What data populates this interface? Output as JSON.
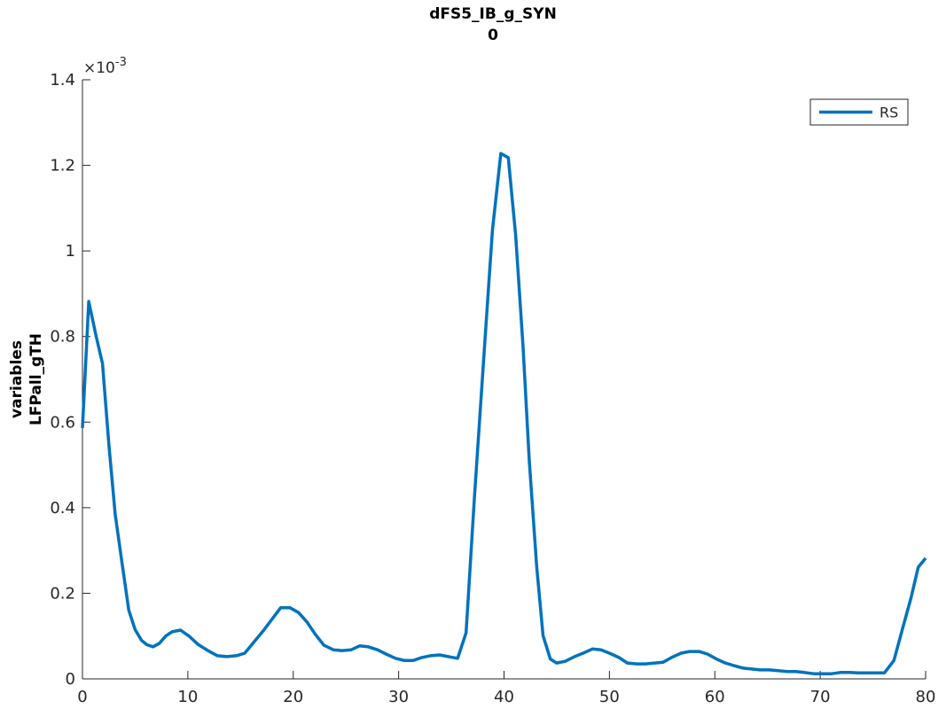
{
  "chart_data": {
    "type": "line",
    "title": "dFS5_IB_g_SYN",
    "subtitle": "0",
    "ylabel": [
      "variables",
      "LFPall_gTH"
    ],
    "y_multiplier_base": "×10",
    "y_multiplier_exponent": "-3",
    "xlim": [
      0,
      80
    ],
    "ylim": [
      0,
      1.4
    ],
    "xticks": [
      0,
      10,
      20,
      30,
      40,
      50,
      60,
      70,
      80
    ],
    "yticks": [
      0,
      0.2,
      0.4,
      0.6,
      0.8,
      1,
      1.2,
      1.4
    ],
    "legend": "top-right",
    "x": [
      0,
      0.6,
      1.3,
      1.9,
      2.5,
      3.1,
      3.7,
      4.4,
      5.0,
      5.6,
      6.1,
      6.7,
      7.3,
      7.9,
      8.5,
      9.3,
      10.1,
      11,
      11.9,
      12.8,
      13.7,
      14.6,
      15.4,
      16.3,
      17.2,
      18,
      18.8,
      19.7,
      20.5,
      21.3,
      22.1,
      22.9,
      23.8,
      24.6,
      25.5,
      26.3,
      27.1,
      28,
      28.8,
      29.7,
      30.5,
      31.4,
      32.2,
      33,
      33.9,
      34.7,
      35.6,
      36.4,
      37.2,
      38.1,
      38.9,
      39.7,
      40.4,
      41.1,
      41.8,
      42.4,
      43.1,
      43.7,
      44.4,
      45,
      45.8,
      46.7,
      47.5,
      48.4,
      49.2,
      50,
      50.9,
      51.7,
      52.6,
      53.4,
      54.3,
      55.1,
      55.9,
      56.8,
      57.6,
      58.5,
      59.3,
      60.2,
      61,
      61.8,
      62.7,
      63.5,
      64.3,
      65.2,
      66,
      66.9,
      67.7,
      68.5,
      69.4,
      70.2,
      71.1,
      71.9,
      72.8,
      73.6,
      74.4,
      75.3,
      76.1,
      77,
      77.8,
      78.6,
      79.3,
      80
    ],
    "series": [
      {
        "name": "RS",
        "color": "#0072bd",
        "values": [
          0.586,
          0.882,
          0.8,
          0.737,
          0.55,
          0.385,
          0.28,
          0.16,
          0.115,
          0.09,
          0.08,
          0.075,
          0.083,
          0.1,
          0.11,
          0.114,
          0.1,
          0.08,
          0.066,
          0.054,
          0.052,
          0.054,
          0.06,
          0.087,
          0.114,
          0.14,
          0.166,
          0.166,
          0.155,
          0.133,
          0.104,
          0.079,
          0.068,
          0.066,
          0.068,
          0.077,
          0.075,
          0.068,
          0.058,
          0.048,
          0.043,
          0.043,
          0.05,
          0.054,
          0.056,
          0.052,
          0.048,
          0.108,
          0.427,
          0.758,
          1.048,
          1.228,
          1.218,
          1.037,
          0.778,
          0.509,
          0.261,
          0.101,
          0.046,
          0.037,
          0.041,
          0.052,
          0.06,
          0.07,
          0.068,
          0.06,
          0.05,
          0.037,
          0.035,
          0.035,
          0.037,
          0.039,
          0.05,
          0.06,
          0.064,
          0.064,
          0.058,
          0.046,
          0.037,
          0.031,
          0.025,
          0.023,
          0.021,
          0.021,
          0.019,
          0.017,
          0.017,
          0.015,
          0.012,
          0.012,
          0.012,
          0.015,
          0.015,
          0.014,
          0.014,
          0.014,
          0.014,
          0.043,
          0.116,
          0.188,
          0.261,
          0.282
        ]
      }
    ]
  }
}
